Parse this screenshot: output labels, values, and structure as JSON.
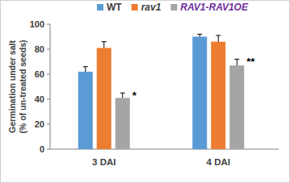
{
  "chart_data": {
    "type": "bar",
    "ylabel": "Germination under salt (% of un-treated seeds)",
    "categories": [
      "3 DAI",
      "4 DAI"
    ],
    "series": [
      {
        "name": "WT",
        "color": "#5b9bd5",
        "values": [
          62,
          90
        ],
        "errors": [
          4,
          2
        ]
      },
      {
        "name": "rav1",
        "color": "#ed7d31",
        "values": [
          81,
          86
        ],
        "errors": [
          5,
          5
        ]
      },
      {
        "name": "RAV1-RAV1OE",
        "color": "#a5a5a5",
        "values": [
          41,
          67
        ],
        "errors": [
          4,
          5
        ],
        "annotations": [
          "*",
          "**"
        ]
      }
    ],
    "ylim": [
      0,
      100
    ],
    "yticks": [
      0,
      20,
      40,
      60,
      80,
      100
    ],
    "grid": false,
    "legend": "top"
  }
}
